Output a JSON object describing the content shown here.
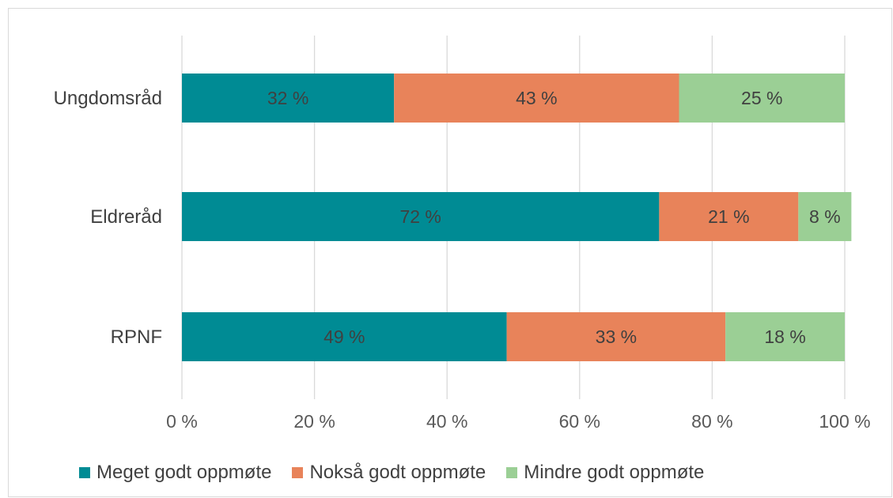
{
  "chart_data": {
    "type": "bar",
    "orientation": "horizontal",
    "stacked": true,
    "categories": [
      "Ungdomsråd",
      "Eldreråd",
      "RPNF"
    ],
    "series": [
      {
        "name": "Meget godt oppmøte",
        "color": "#008B94",
        "values": [
          32,
          72,
          49
        ],
        "labels": [
          "32 %",
          "72 %",
          "49 %"
        ]
      },
      {
        "name": "Nokså godt oppmøte",
        "color": "#E8835A",
        "values": [
          43,
          21,
          33
        ],
        "labels": [
          "43 %",
          "21 %",
          "33 %"
        ]
      },
      {
        "name": "Mindre godt oppmøte",
        "color": "#9BCF95",
        "values": [
          25,
          8,
          18
        ],
        "labels": [
          "25 %",
          "8 %",
          "18 %"
        ]
      }
    ],
    "xlim": [
      0,
      100
    ],
    "x_ticks": [
      0,
      20,
      40,
      60,
      80,
      100
    ],
    "x_tick_labels": [
      "0 %",
      "20 %",
      "40 %",
      "60 %",
      "80 %",
      "100 %"
    ],
    "grid": "vertical",
    "legend_position": "bottom"
  }
}
